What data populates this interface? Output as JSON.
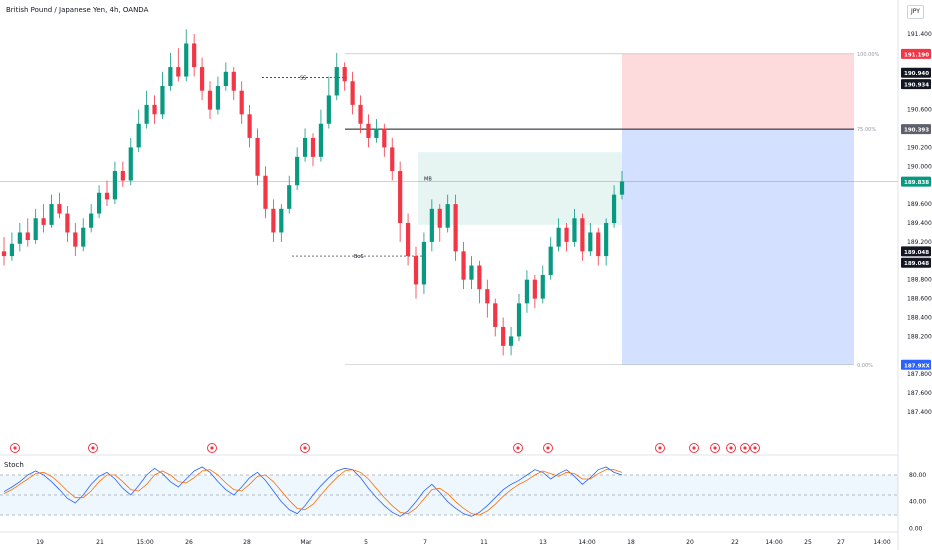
{
  "header": {
    "title": "British Pound / Japanese Yen, 4h, OANDA",
    "currency": "JPY"
  },
  "colors": {
    "up": "#26a69a",
    "down": "#ef5350",
    "bull": "#089981",
    "bear": "#f23645",
    "stoch_k": "#2962ff",
    "stoch_d": "#ff6d00"
  },
  "chart_data": {
    "type": "candlestick",
    "symbol": "GBPJPY",
    "timeframe": "4h",
    "price_axis": {
      "ticks": [
        "191.400",
        "190.600",
        "190.200",
        "190.000",
        "189.600",
        "189.400",
        "189.200",
        "188.800",
        "188.600",
        "188.400",
        "188.200",
        "187.800",
        "187.600",
        "187.400"
      ],
      "range": [
        187.4,
        191.5
      ]
    },
    "price_labels": [
      {
        "value": "191.190",
        "kind": "stop"
      },
      {
        "value": "190.940",
        "kind": "high"
      },
      {
        "value": "190.934",
        "kind": "high"
      },
      {
        "value": "190.393",
        "kind": "level"
      },
      {
        "value": "189.838",
        "kind": "last"
      },
      {
        "value": "189.048",
        "kind": "low"
      },
      {
        "value": "189.048",
        "kind": "low"
      },
      {
        "value": "187.9XX",
        "kind": "target"
      }
    ],
    "time_axis": [
      "19",
      "21",
      "15:00",
      "26",
      "28",
      "Mar",
      "5",
      "7",
      "11",
      "13",
      "14:00",
      "18",
      "20",
      "22",
      "14:00",
      "25",
      "27",
      "14:00"
    ],
    "fib_levels": [
      {
        "label": "100.00%",
        "price": 191.19
      },
      {
        "label": "75.00%",
        "price": 190.393
      },
      {
        "label": "0.00%",
        "price": 187.9
      }
    ],
    "annotations": [
      "SS",
      "BoS",
      "MB"
    ],
    "candles": [
      [
        189.1,
        189.05,
        189.25,
        188.95
      ],
      [
        189.05,
        189.18,
        189.3,
        189.0
      ],
      [
        189.18,
        189.3,
        189.4,
        189.1
      ],
      [
        189.3,
        189.22,
        189.45,
        189.15
      ],
      [
        189.22,
        189.45,
        189.55,
        189.18
      ],
      [
        189.45,
        189.38,
        189.6,
        189.3
      ],
      [
        189.38,
        189.6,
        189.7,
        189.35
      ],
      [
        189.6,
        189.5,
        189.72,
        189.45
      ],
      [
        189.5,
        189.3,
        189.58,
        189.2
      ],
      [
        189.3,
        189.15,
        189.4,
        189.05
      ],
      [
        189.15,
        189.35,
        189.45,
        189.1
      ],
      [
        189.35,
        189.5,
        189.6,
        189.3
      ],
      [
        189.5,
        189.72,
        189.8,
        189.45
      ],
      [
        189.72,
        189.65,
        189.85,
        189.58
      ],
      [
        189.65,
        189.95,
        190.05,
        189.6
      ],
      [
        189.95,
        189.85,
        190.05,
        189.78
      ],
      [
        189.85,
        190.2,
        190.3,
        189.8
      ],
      [
        190.2,
        190.45,
        190.6,
        190.15
      ],
      [
        190.45,
        190.65,
        190.8,
        190.4
      ],
      [
        190.65,
        190.55,
        190.75,
        190.45
      ],
      [
        190.55,
        190.85,
        191.0,
        190.5
      ],
      [
        190.85,
        191.05,
        191.2,
        190.8
      ],
      [
        191.05,
        190.95,
        191.25,
        190.9
      ],
      [
        190.95,
        191.3,
        191.45,
        190.9
      ],
      [
        191.3,
        191.05,
        191.4,
        190.95
      ],
      [
        191.05,
        190.8,
        191.15,
        190.7
      ],
      [
        190.8,
        190.6,
        190.9,
        190.5
      ],
      [
        190.6,
        190.85,
        190.95,
        190.55
      ],
      [
        190.85,
        191.0,
        191.1,
        190.8
      ],
      [
        191.0,
        190.8,
        191.05,
        190.7
      ],
      [
        190.8,
        190.55,
        190.9,
        190.45
      ],
      [
        190.55,
        190.3,
        190.65,
        190.2
      ],
      [
        190.3,
        189.9,
        190.4,
        189.8
      ],
      [
        189.9,
        189.55,
        190.0,
        189.45
      ],
      [
        189.55,
        189.3,
        189.65,
        189.2
      ],
      [
        189.3,
        189.55,
        189.6,
        189.2
      ],
      [
        189.55,
        189.8,
        189.9,
        189.5
      ],
      [
        189.8,
        190.1,
        190.2,
        189.75
      ],
      [
        190.1,
        190.3,
        190.4,
        190.05
      ],
      [
        190.3,
        190.1,
        190.35,
        190.0
      ],
      [
        190.1,
        190.45,
        190.6,
        190.05
      ],
      [
        190.45,
        190.75,
        190.95,
        190.4
      ],
      [
        190.75,
        191.05,
        191.2,
        190.7
      ],
      [
        191.05,
        190.9,
        191.1,
        190.8
      ],
      [
        190.9,
        190.65,
        191.0,
        190.55
      ],
      [
        190.65,
        190.45,
        190.75,
        190.35
      ],
      [
        190.45,
        190.3,
        190.55,
        190.2
      ],
      [
        190.3,
        190.4,
        190.5,
        190.25
      ],
      [
        190.4,
        190.2,
        190.45,
        190.1
      ],
      [
        190.2,
        189.95,
        190.3,
        189.85
      ],
      [
        189.95,
        189.4,
        190.05,
        189.2
      ],
      [
        189.4,
        189.05,
        189.5,
        188.95
      ],
      [
        189.05,
        188.75,
        189.15,
        188.6
      ],
      [
        188.75,
        189.2,
        189.3,
        188.65
      ],
      [
        189.2,
        189.55,
        189.65,
        189.1
      ],
      [
        189.55,
        189.35,
        189.6,
        189.2
      ],
      [
        189.35,
        189.6,
        189.7,
        189.3
      ],
      [
        189.6,
        189.1,
        189.7,
        189.0
      ],
      [
        189.1,
        188.8,
        189.2,
        188.7
      ],
      [
        188.8,
        188.95,
        189.05,
        188.7
      ],
      [
        188.95,
        188.7,
        189.0,
        188.55
      ],
      [
        188.7,
        188.55,
        188.8,
        188.4
      ],
      [
        188.55,
        188.3,
        188.6,
        188.2
      ],
      [
        188.3,
        188.1,
        188.4,
        188.0
      ],
      [
        188.1,
        188.2,
        188.3,
        188.0
      ],
      [
        188.2,
        188.55,
        188.65,
        188.15
      ],
      [
        188.55,
        188.8,
        188.9,
        188.45
      ],
      [
        188.8,
        188.6,
        188.85,
        188.5
      ],
      [
        188.6,
        188.85,
        188.95,
        188.55
      ],
      [
        188.85,
        189.15,
        189.25,
        188.8
      ],
      [
        189.15,
        189.35,
        189.45,
        189.1
      ],
      [
        189.35,
        189.2,
        189.4,
        189.1
      ],
      [
        189.2,
        189.45,
        189.55,
        189.15
      ],
      [
        189.45,
        189.1,
        189.5,
        189.0
      ],
      [
        189.1,
        189.3,
        189.4,
        189.05
      ],
      [
        189.3,
        189.05,
        189.35,
        188.95
      ],
      [
        189.05,
        189.4,
        189.45,
        188.95
      ],
      [
        189.4,
        189.7,
        189.8,
        189.35
      ],
      [
        189.7,
        189.84,
        189.95,
        189.65
      ]
    ],
    "stochastic": {
      "name": "Stoch",
      "ticks": [
        "80.00",
        "40.00",
        "0.00"
      ],
      "k": [
        55,
        62,
        70,
        80,
        86,
        80,
        70,
        58,
        45,
        38,
        50,
        66,
        78,
        84,
        74,
        60,
        50,
        64,
        80,
        90,
        82,
        70,
        62,
        74,
        86,
        92,
        84,
        70,
        58,
        50,
        62,
        76,
        84,
        72,
        56,
        40,
        28,
        22,
        34,
        50,
        64,
        76,
        86,
        90,
        88,
        76,
        60,
        46,
        34,
        24,
        18,
        26,
        40,
        56,
        66,
        54,
        40,
        30,
        22,
        18,
        24,
        34,
        46,
        58,
        66,
        72,
        80,
        88,
        84,
        74,
        82,
        88,
        78,
        66,
        76,
        88,
        92,
        84,
        80
      ],
      "d": [
        52,
        58,
        66,
        74,
        82,
        84,
        78,
        68,
        56,
        46,
        46,
        56,
        70,
        80,
        80,
        70,
        58,
        56,
        66,
        80,
        86,
        80,
        70,
        68,
        76,
        86,
        88,
        80,
        68,
        58,
        56,
        66,
        78,
        80,
        70,
        56,
        42,
        30,
        28,
        36,
        50,
        64,
        76,
        86,
        88,
        84,
        74,
        60,
        46,
        34,
        24,
        22,
        30,
        44,
        58,
        60,
        52,
        40,
        30,
        22,
        20,
        26,
        36,
        48,
        58,
        66,
        72,
        80,
        86,
        82,
        78,
        84,
        82,
        74,
        74,
        82,
        88,
        88,
        84
      ],
      "levels": [
        80,
        50,
        20
      ]
    }
  }
}
